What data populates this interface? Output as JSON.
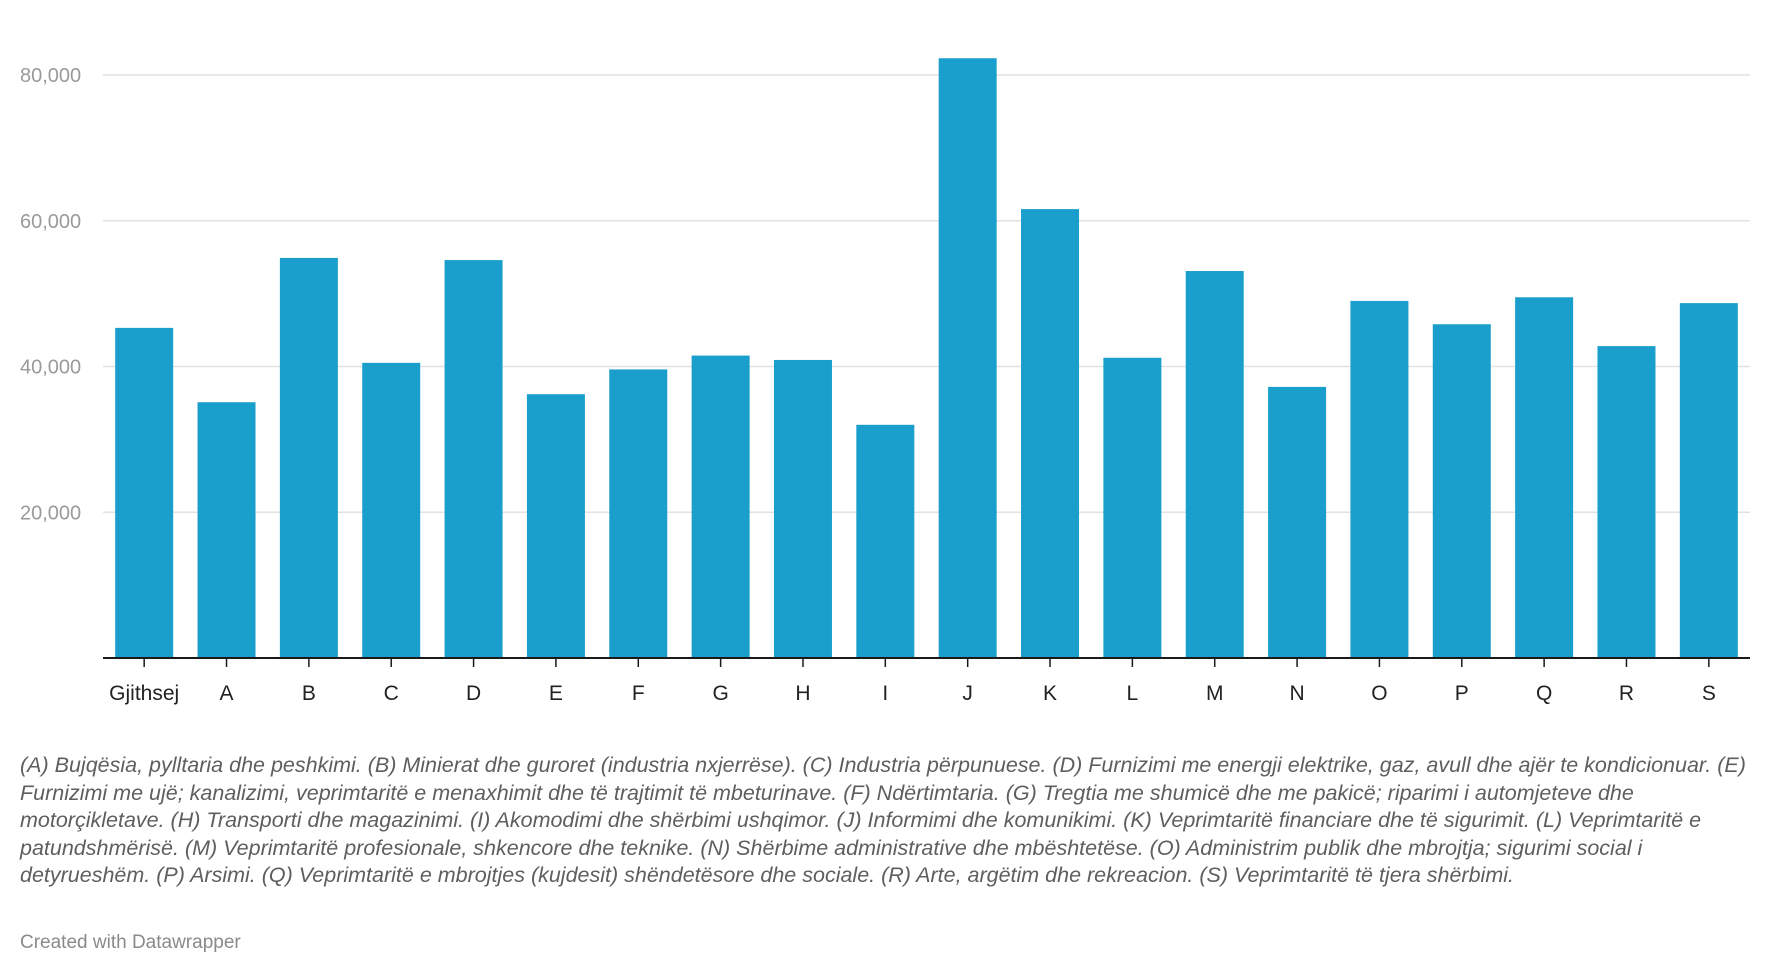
{
  "chart_data": {
    "type": "bar",
    "categories": [
      "Gjithsej",
      "A",
      "B",
      "C",
      "D",
      "E",
      "F",
      "G",
      "H",
      "I",
      "J",
      "K",
      "L",
      "M",
      "N",
      "O",
      "P",
      "Q",
      "R",
      "S"
    ],
    "values": [
      45300,
      35100,
      54900,
      40500,
      54600,
      36200,
      39600,
      41500,
      40900,
      32000,
      82300,
      61600,
      41200,
      53100,
      37200,
      49000,
      45800,
      49500,
      42800,
      48700
    ],
    "yticks": [
      20000,
      40000,
      60000,
      80000
    ],
    "ytick_labels": [
      "20,000",
      "40,000",
      "60,000",
      "80,000"
    ],
    "ylim": [
      0,
      85000
    ],
    "grid": true,
    "bar_color": "#1a9fcc",
    "title": "",
    "xlabel": "",
    "ylabel": ""
  },
  "notes": "(A) Bujqësia, pylltaria dhe peshkimi. (B) Minierat dhe guroret (industria nxjerrëse). (C) Industria përpunuese. (D) Furnizimi me energji elektrike, gaz, avull dhe ajër te kondicionuar. (E) Furnizimi me ujë; kanalizimi, veprimtaritë e menaxhimit dhe të trajtimit të mbeturinave. (F) Ndërtimtaria. (G) Tregtia me shumicë dhe me pakicë; riparimi i automjeteve dhe motorçikletave. (H) Transporti dhe magazinimi. (I) Akomodimi dhe shërbimi ushqimor. (J) Informimi dhe komunikimi. (K) Veprimtaritë financiare dhe të sigurimit. (L) Veprimtaritë e patundshmërisë. (M) Veprimtaritë profesionale, shkencore dhe teknike. (N) Shërbime administrative dhe mbështetëse. (O) Administrim publik dhe mbrojtja; sigurimi social i detyrueshëm. (P) Arsimi. (Q) Veprimtaritë e mbrojtjes (kujdesit) shëndetësore dhe sociale. (R) Arte, argëtim dhe rekreacion. (S) Veprimtaritë të tjera shërbimi.",
  "credit": "Created with Datawrapper"
}
